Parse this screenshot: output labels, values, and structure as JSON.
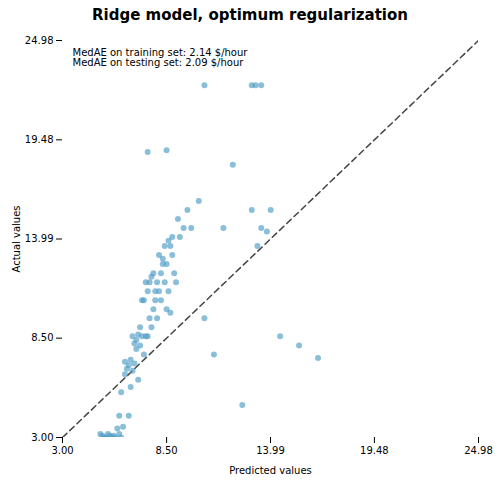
{
  "chart_data": {
    "type": "scatter",
    "title": "Ridge model, optimum regularization",
    "xlabel": "Predicted values",
    "ylabel": "Actual values",
    "xlim": [
      3.0,
      24.98
    ],
    "ylim": [
      3.0,
      24.98
    ],
    "xticks": [
      {
        "value": 3.0,
        "label": "3.00"
      },
      {
        "value": 8.5,
        "label": "8.50"
      },
      13.99,
      19.48,
      24.98
    ],
    "yticks": [
      {
        "value": 3.0,
        "label": "3.00"
      },
      {
        "value": 8.5,
        "label": "8.50"
      },
      13.99,
      19.48,
      24.98
    ],
    "annotations": [
      "MedAE on training set: 2.14 $/hour",
      "MedAE on testing set: 2.09 $/hour"
    ],
    "series": [
      {
        "type": "scatter",
        "marker": "circle",
        "color": "#4d9bc4",
        "x": [
          5.0,
          5.1,
          5.2,
          5.3,
          5.4,
          5.5,
          5.6,
          5.7,
          5.8,
          5.9,
          6.0,
          6.0,
          6.1,
          6.1,
          6.2,
          6.3,
          6.3,
          6.4,
          6.5,
          6.5,
          6.6,
          6.6,
          6.7,
          6.7,
          6.8,
          6.8,
          6.9,
          6.9,
          7.0,
          7.0,
          7.1,
          7.1,
          7.2,
          7.2,
          7.3,
          7.3,
          7.4,
          7.4,
          7.5,
          7.5,
          7.6,
          7.6,
          7.7,
          7.7,
          7.8,
          7.8,
          7.9,
          7.9,
          8.0,
          8.0,
          8.1,
          8.1,
          8.2,
          8.2,
          8.3,
          8.3,
          8.4,
          8.4,
          8.5,
          8.5,
          8.6,
          8.6,
          8.7,
          8.7,
          8.8,
          8.8,
          8.9,
          9.0,
          9.1,
          9.2,
          9.4,
          9.6,
          9.8,
          10.2,
          10.5,
          11.0,
          11.5,
          12.0,
          12.5,
          13.0,
          13.3,
          13.5,
          13.8,
          14.0,
          14.5,
          15.5,
          16.5,
          7.5,
          8.5,
          10.5,
          13.0,
          13.2,
          13.5
        ],
        "y": [
          3.2,
          3.1,
          3.0,
          3.0,
          3.2,
          3.1,
          3.0,
          3.1,
          3.0,
          3.5,
          3.2,
          4.2,
          3.0,
          5.5,
          3.6,
          6.5,
          7.2,
          6.8,
          4.2,
          7.0,
          7.3,
          5.8,
          8.6,
          6.7,
          8.2,
          7.1,
          8.4,
          7.9,
          6.2,
          8.7,
          8.1,
          9.1,
          8.6,
          10.6,
          7.6,
          10.6,
          8.6,
          11.6,
          8.6,
          11.1,
          9.6,
          11.6,
          9.1,
          11.9,
          10.1,
          12.1,
          10.6,
          11.1,
          11.6,
          9.6,
          11.1,
          13.1,
          10.6,
          12.1,
          12.6,
          12.9,
          11.6,
          13.6,
          10.1,
          12.6,
          11.1,
          13.9,
          9.9,
          13.6,
          13.1,
          14.1,
          12.1,
          11.6,
          15.1,
          14.1,
          14.6,
          15.6,
          14.6,
          16.1,
          9.6,
          7.6,
          14.6,
          18.1,
          4.8,
          15.6,
          13.6,
          14.6,
          14.4,
          15.6,
          8.6,
          8.1,
          7.4,
          18.8,
          18.9,
          22.5,
          22.5,
          22.5,
          22.5
        ]
      },
      {
        "type": "line",
        "line_style": "dashed",
        "color": "#444444",
        "x": [
          3.0,
          24.98
        ],
        "y": [
          3.0,
          24.98
        ]
      }
    ]
  }
}
